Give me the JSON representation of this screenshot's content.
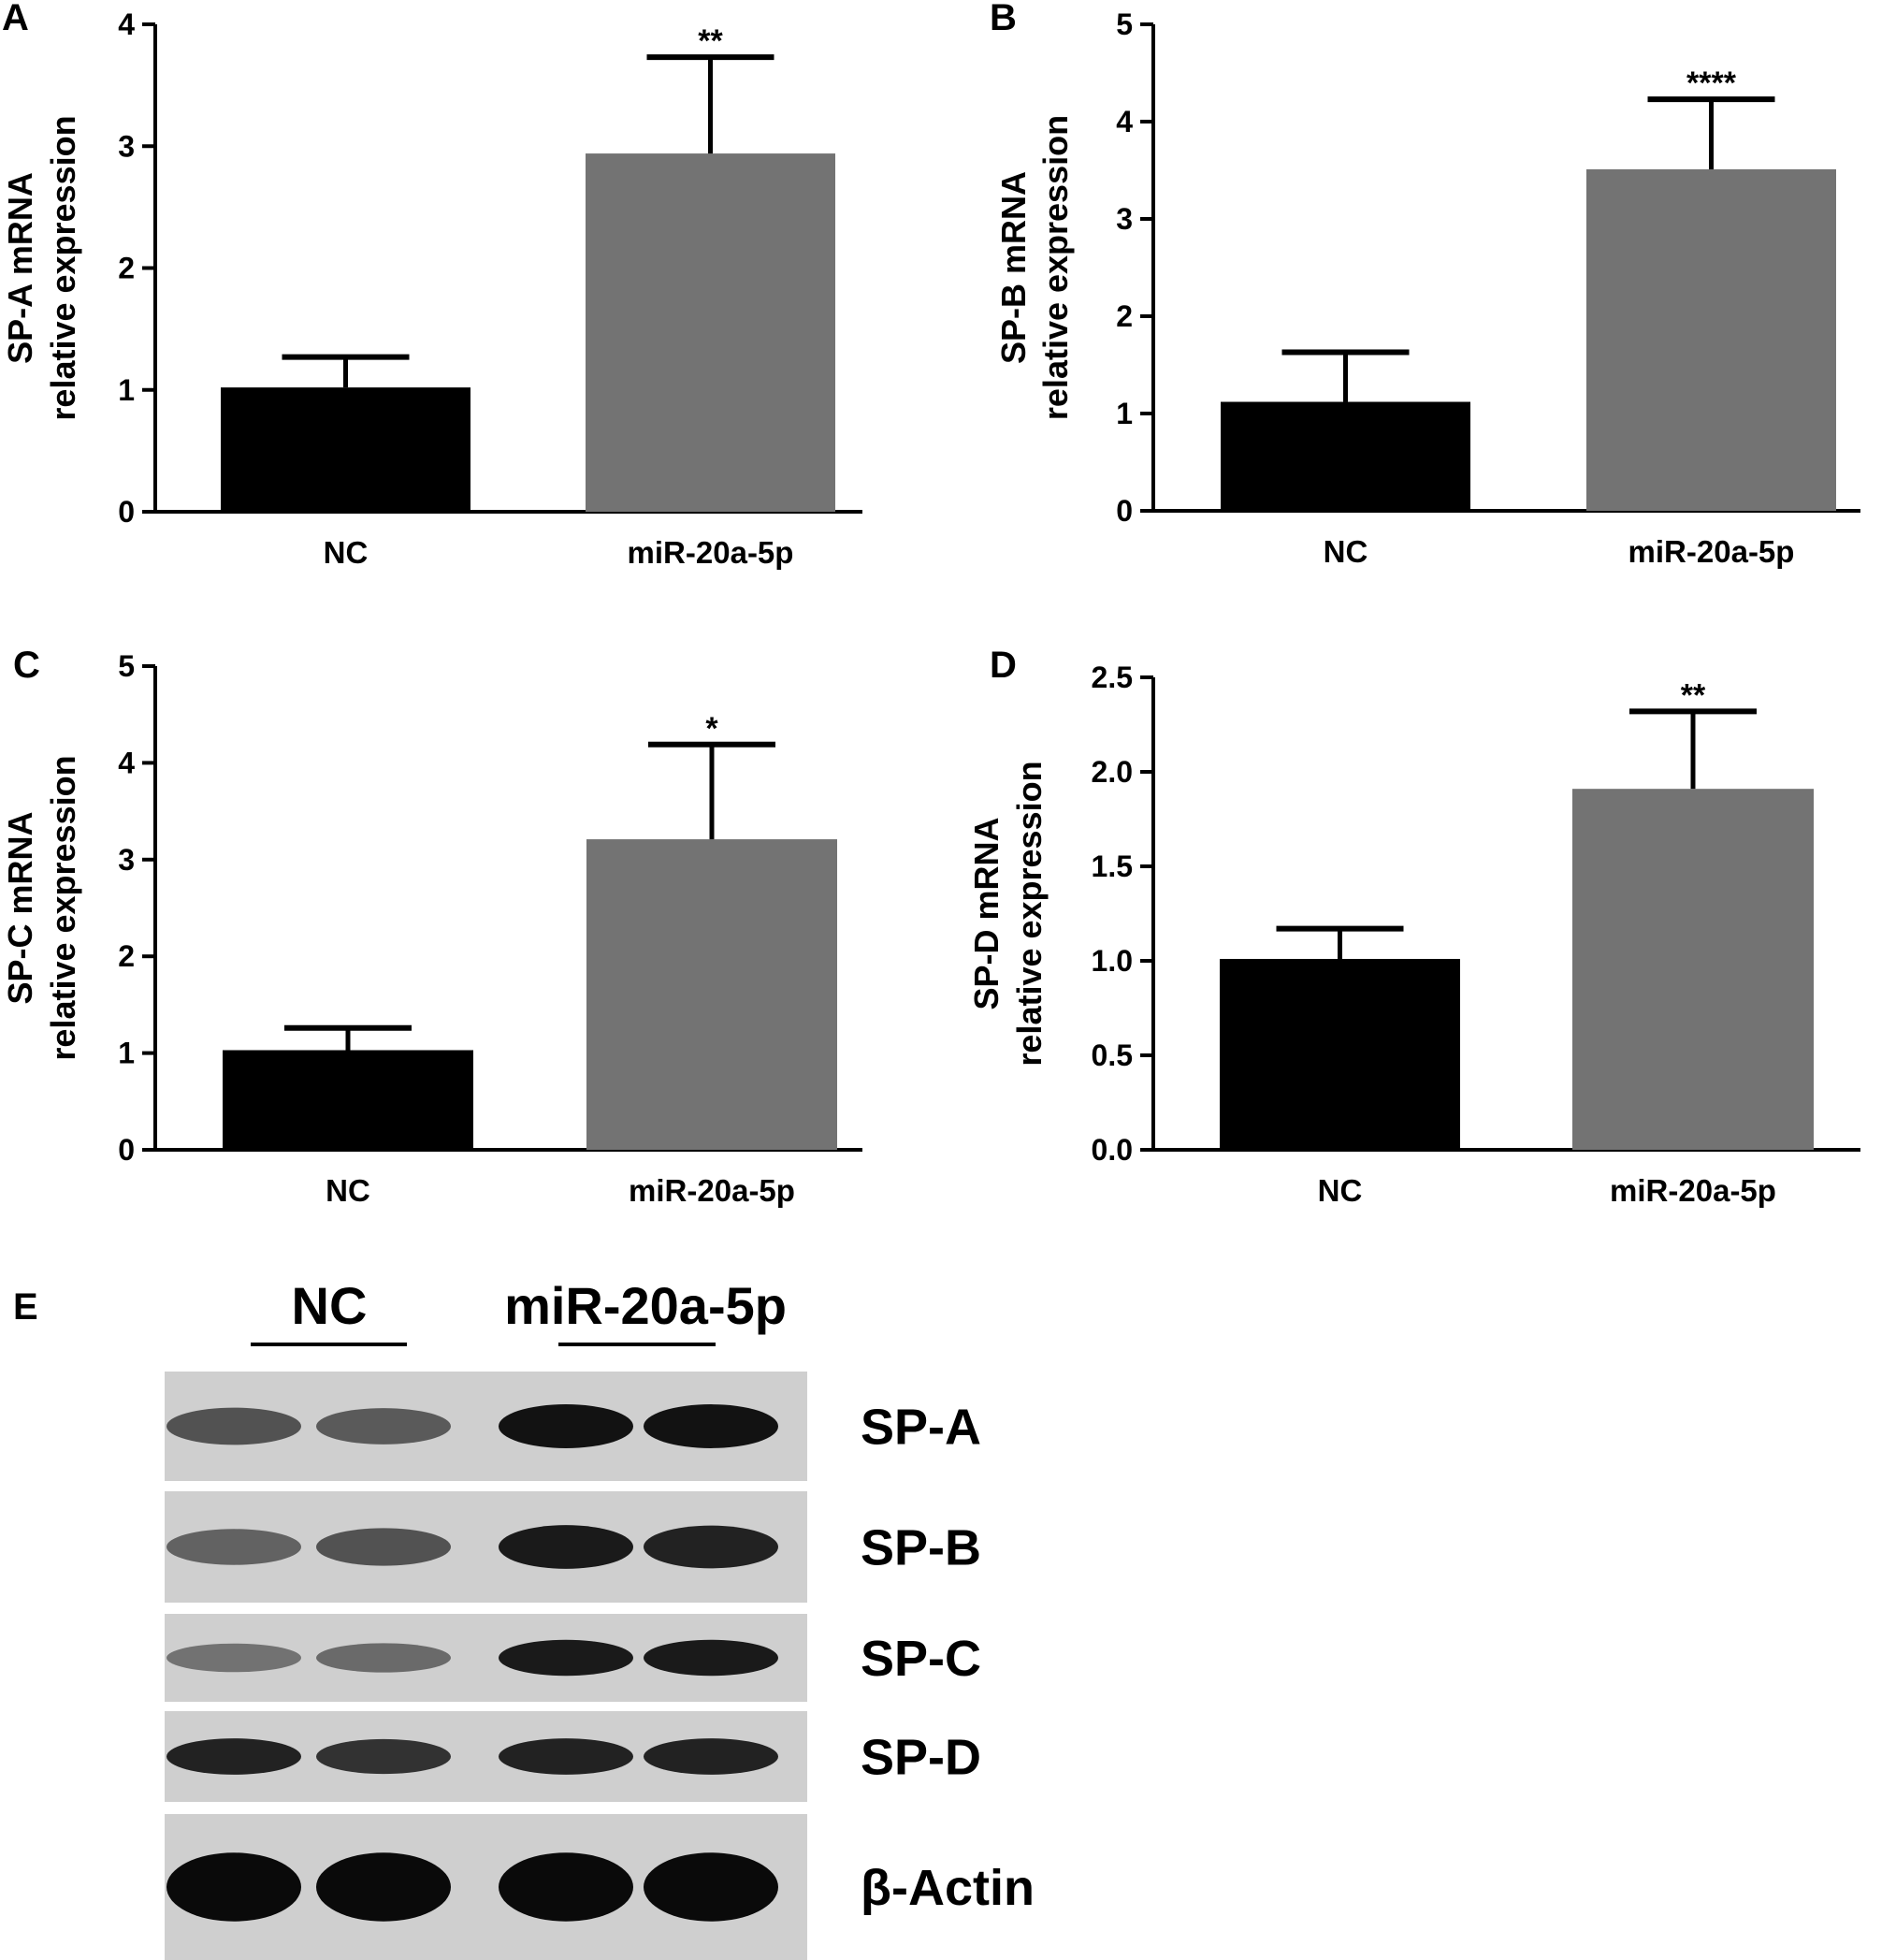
{
  "chart_data": [
    {
      "panel": "A",
      "type": "bar",
      "categories": [
        "NC",
        "miR-20a-5p"
      ],
      "values": [
        1.02,
        2.94
      ],
      "errors": [
        0.25,
        0.79
      ],
      "significance": [
        "",
        "**"
      ],
      "bar_colors": [
        "#000000",
        "#737373"
      ],
      "ylabel": [
        "SP-A mRNA",
        "relative expression"
      ],
      "ylim": [
        0,
        4
      ],
      "yticks": [
        "0",
        "1",
        "2",
        "3",
        "4"
      ]
    },
    {
      "panel": "B",
      "type": "bar",
      "categories": [
        "NC",
        "miR-20a-5p"
      ],
      "values": [
        1.12,
        3.51
      ],
      "errors": [
        0.51,
        0.72
      ],
      "significance": [
        "",
        "****"
      ],
      "bar_colors": [
        "#000000",
        "#737373"
      ],
      "ylabel": [
        "SP-B mRNA",
        "relative expression"
      ],
      "ylim": [
        0,
        5
      ],
      "yticks": [
        "0",
        "1",
        "2",
        "3",
        "4",
        "5"
      ]
    },
    {
      "panel": "C",
      "type": "bar",
      "categories": [
        "NC",
        "miR-20a-5p"
      ],
      "values": [
        1.03,
        3.21
      ],
      "errors": [
        0.23,
        0.98
      ],
      "significance": [
        "",
        "*"
      ],
      "bar_colors": [
        "#000000",
        "#737373"
      ],
      "ylabel": [
        "SP-C mRNA",
        "relative expression"
      ],
      "ylim": [
        0,
        5
      ],
      "yticks": [
        "0",
        "1",
        "2",
        "3",
        "4",
        "5"
      ]
    },
    {
      "panel": "D",
      "type": "bar",
      "categories": [
        "NC",
        "miR-20a-5p"
      ],
      "values": [
        1.01,
        1.91
      ],
      "errors": [
        0.16,
        0.41
      ],
      "significance": [
        "",
        "**"
      ],
      "bar_colors": [
        "#000000",
        "#737373"
      ],
      "ylabel": [
        "SP-D mRNA",
        "relative expression"
      ],
      "ylim": [
        0,
        2.5
      ],
      "yticks": [
        "0.0",
        "0.5",
        "1.0",
        "1.5",
        "2.0",
        "2.5"
      ]
    }
  ],
  "blot": {
    "panel": "E",
    "groups": [
      "NC",
      "miR-20a-5p"
    ],
    "rows": [
      {
        "label": "SP-A",
        "bands": [
          0.55,
          0.5,
          0.95,
          0.95
        ]
      },
      {
        "label": "SP-B",
        "bands": [
          0.45,
          0.55,
          0.9,
          0.85
        ]
      },
      {
        "label": "SP-C",
        "bands": [
          0.35,
          0.4,
          0.9,
          0.9
        ]
      },
      {
        "label": "SP-D",
        "bands": [
          0.85,
          0.75,
          0.85,
          0.85
        ]
      },
      {
        "label": "β-Actin",
        "bands": [
          1.0,
          1.0,
          1.0,
          1.0
        ]
      }
    ]
  }
}
